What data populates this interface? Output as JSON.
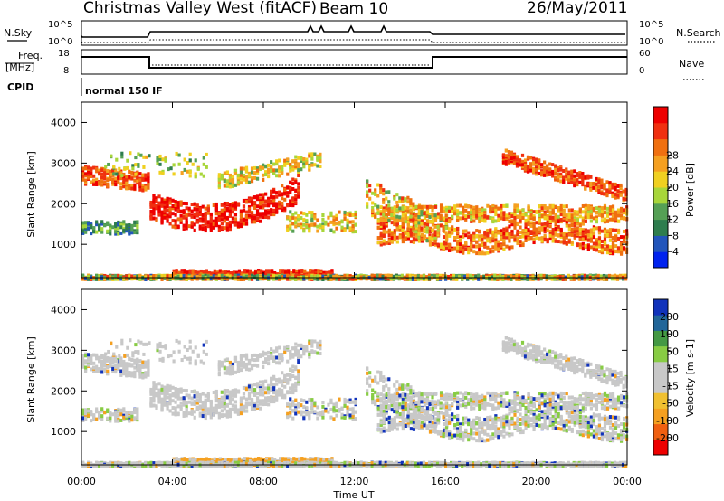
{
  "header": {
    "station": "Christmas Valley West (fitACF)",
    "beam": "Beam 10",
    "date": "26/May/2011"
  },
  "strip": {
    "nsky_label": "N.Sky",
    "nsky_ticks": [
      "10^5",
      "10^0"
    ],
    "nsearch_label": "N.Search",
    "nsearch_ticks": [
      "10^5",
      "10^0"
    ],
    "freq_label": "Freq.",
    "freq_unit": "[MHz]",
    "freq_ticks": [
      "18",
      "8"
    ],
    "nave_label": "Nave",
    "nave_ticks": [
      "60",
      "0"
    ],
    "cpid_label": "CPID",
    "cpid_value": "normal 150 IF"
  },
  "colors": {
    "power_bar": [
      "#0022ee",
      "#2255bb",
      "#2e7d4e",
      "#55a055",
      "#a8d63a",
      "#f0d020",
      "#f5a020",
      "#f07010",
      "#f03010",
      "#ee0000"
    ],
    "velocity_bar": [
      "#ee0000",
      "#f06010",
      "#f5a020",
      "#f0c030",
      "#c8c8c8",
      "#c8c8c8",
      "#88cc44",
      "#449944",
      "#226699",
      "#1133bb"
    ]
  },
  "chart_data": [
    {
      "type": "heatmap",
      "name": "power-panel",
      "ylabel": "Slant Range [km]",
      "yticks": [
        "1000",
        "2000",
        "3000",
        "4000"
      ],
      "ylim": [
        180,
        4500
      ],
      "xlim": [
        0,
        24
      ],
      "colorbar_label": "Power [dB]",
      "colorbar_ticks": [
        "4",
        "8",
        "12",
        "16",
        "20",
        "24",
        "28"
      ],
      "colorbar_range": [
        0,
        32
      ]
    },
    {
      "type": "heatmap",
      "name": "velocity-panel",
      "ylabel": "Slant Range [km]",
      "yticks": [
        "1000",
        "2000",
        "3000",
        "4000"
      ],
      "ylim": [
        180,
        4500
      ],
      "xlim": [
        0,
        24
      ],
      "colorbar_label": "Velocity [m s-1]",
      "colorbar_ticks": [
        "-200",
        "-100",
        "-50",
        "-15",
        "15",
        "50",
        "100",
        "200"
      ]
    }
  ],
  "xaxis": {
    "ticks": [
      "00:00",
      "04:00",
      "08:00",
      "12:00",
      "16:00",
      "20:00",
      "00:00"
    ],
    "label": "Time UT"
  }
}
